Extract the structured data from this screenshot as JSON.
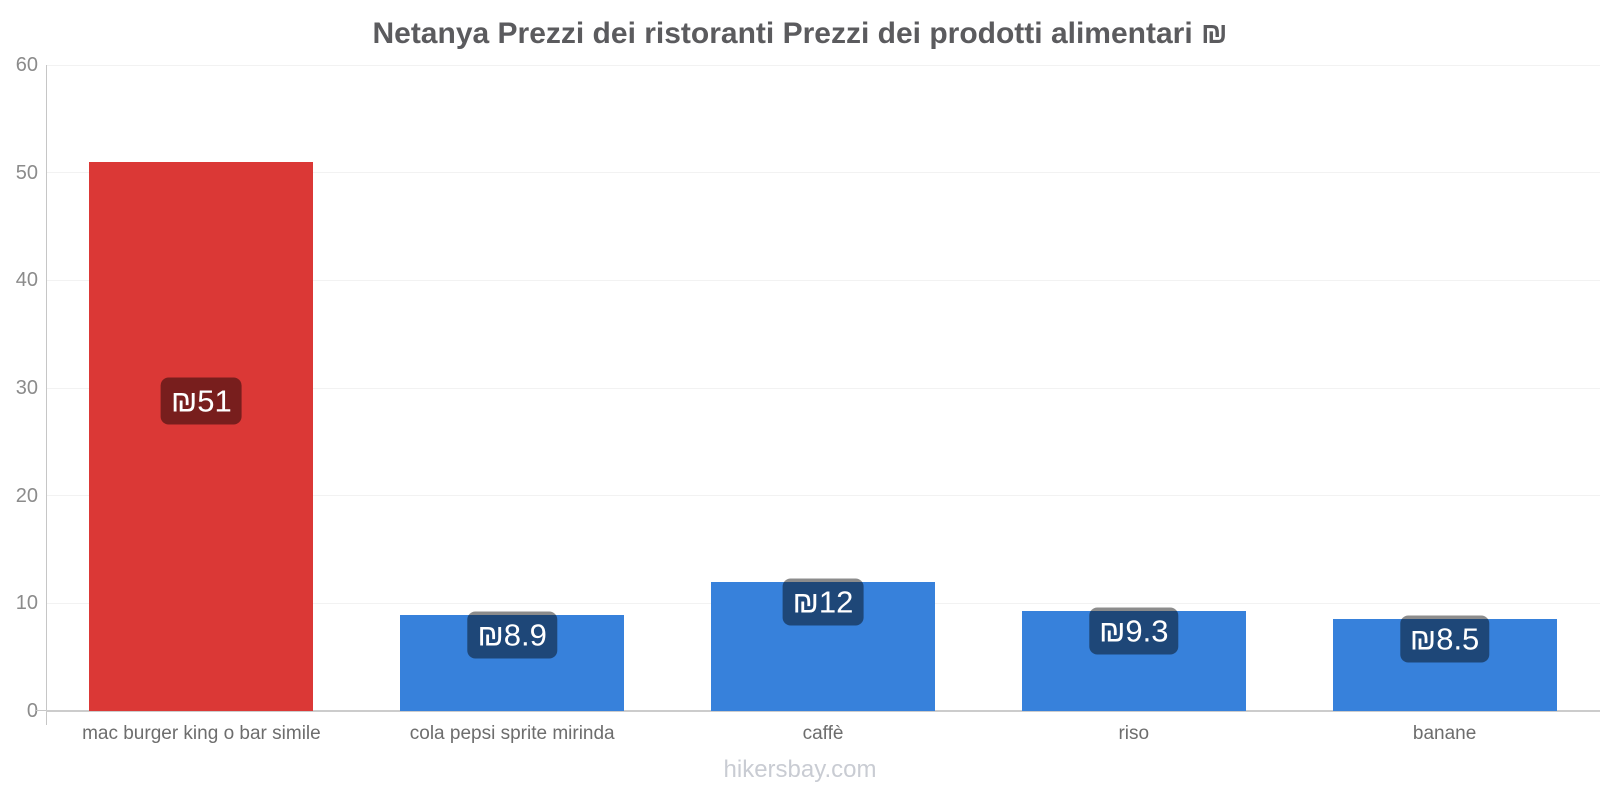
{
  "footer": "hikersbay.com",
  "chart_data": {
    "type": "bar",
    "title": "Netanya Prezzi dei ristoranti Prezzi dei prodotti alimentari ₪",
    "categories": [
      "mac burger king o bar simile",
      "cola pepsi sprite mirinda",
      "caffè",
      "riso",
      "banane"
    ],
    "values": [
      51,
      8.9,
      12,
      9.3,
      8.5
    ],
    "value_labels": [
      "₪51",
      "₪8.9",
      "₪12",
      "₪9.3",
      "₪8.5"
    ],
    "currency_symbol": "₪",
    "bar_colors": [
      "#db3836",
      "#3781db",
      "#3781db",
      "#3781db",
      "#3781db"
    ],
    "badge_overlay_color": "rgba(0,0,0,0.45)",
    "xlabel": "",
    "ylabel": "",
    "ylim": [
      0,
      60
    ],
    "yticks": [
      0,
      10,
      20,
      30,
      40,
      50,
      60
    ],
    "grid": true,
    "legend": "none"
  }
}
